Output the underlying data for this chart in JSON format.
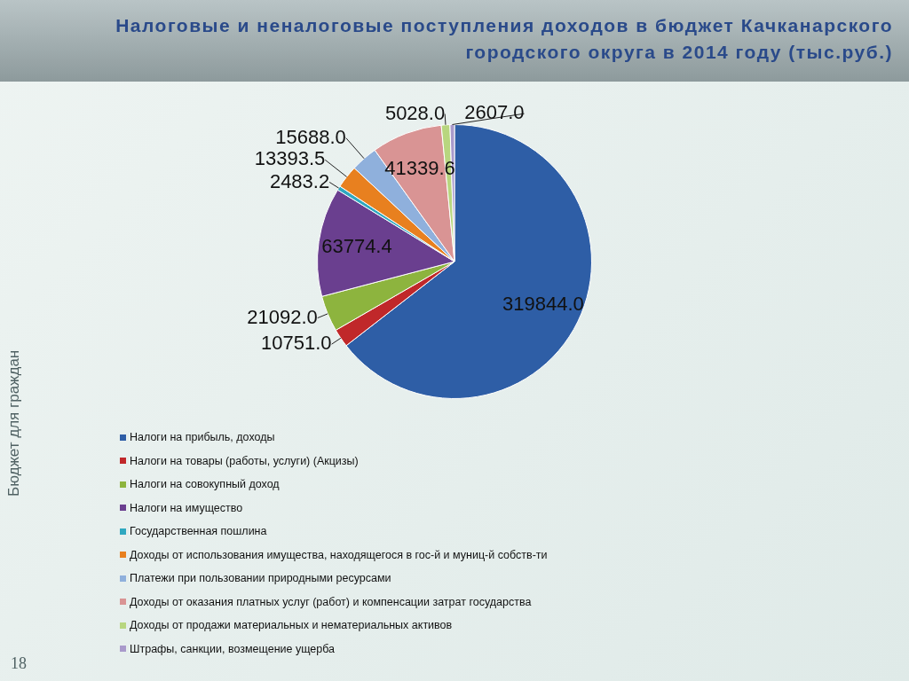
{
  "chart_data": {
    "type": "pie",
    "title": "Налоговые и неналоговые поступления доходов в бюджет Качканарского городского округа в 2014 году (тыс.руб.)",
    "categories": [
      "Налоги на прибыль, доходы",
      "Налоги на товары (работы, услуги) (Акцизы)",
      "Налоги на совокупный доход",
      "Налоги на имущество",
      "Государственная пошлина",
      "Доходы от использования имущества, находящегося в гос-й и муниц-й собств-ти",
      "Платежи при пользовании природными ресурсами",
      "Доходы от оказания платных услуг (работ) и компенсации затрат государства",
      "Доходы от продажи материальных и нематериальных активов",
      "Штрафы, санкции, возмещение ущерба"
    ],
    "values": [
      319844.0,
      10751.0,
      21092.0,
      63774.4,
      2483.2,
      13393.5,
      15688.0,
      41339.6,
      5028.0,
      2607.0
    ],
    "value_labels": [
      "319844.0",
      "10751.0",
      "21092.0",
      "63774.4",
      "2483.2",
      "13393.5",
      "15688.0",
      "41339.6",
      "5028.0",
      "2607.0"
    ],
    "colors": [
      "#2e5ea6",
      "#c0282a",
      "#8db43e",
      "#6a3f8f",
      "#2fa8c0",
      "#e8801f",
      "#8fb0dc",
      "#d99494",
      "#b8d67f",
      "#a99acb"
    ],
    "legend": "bottom",
    "annotations": [
      "Бюджет для граждан",
      "18"
    ]
  }
}
